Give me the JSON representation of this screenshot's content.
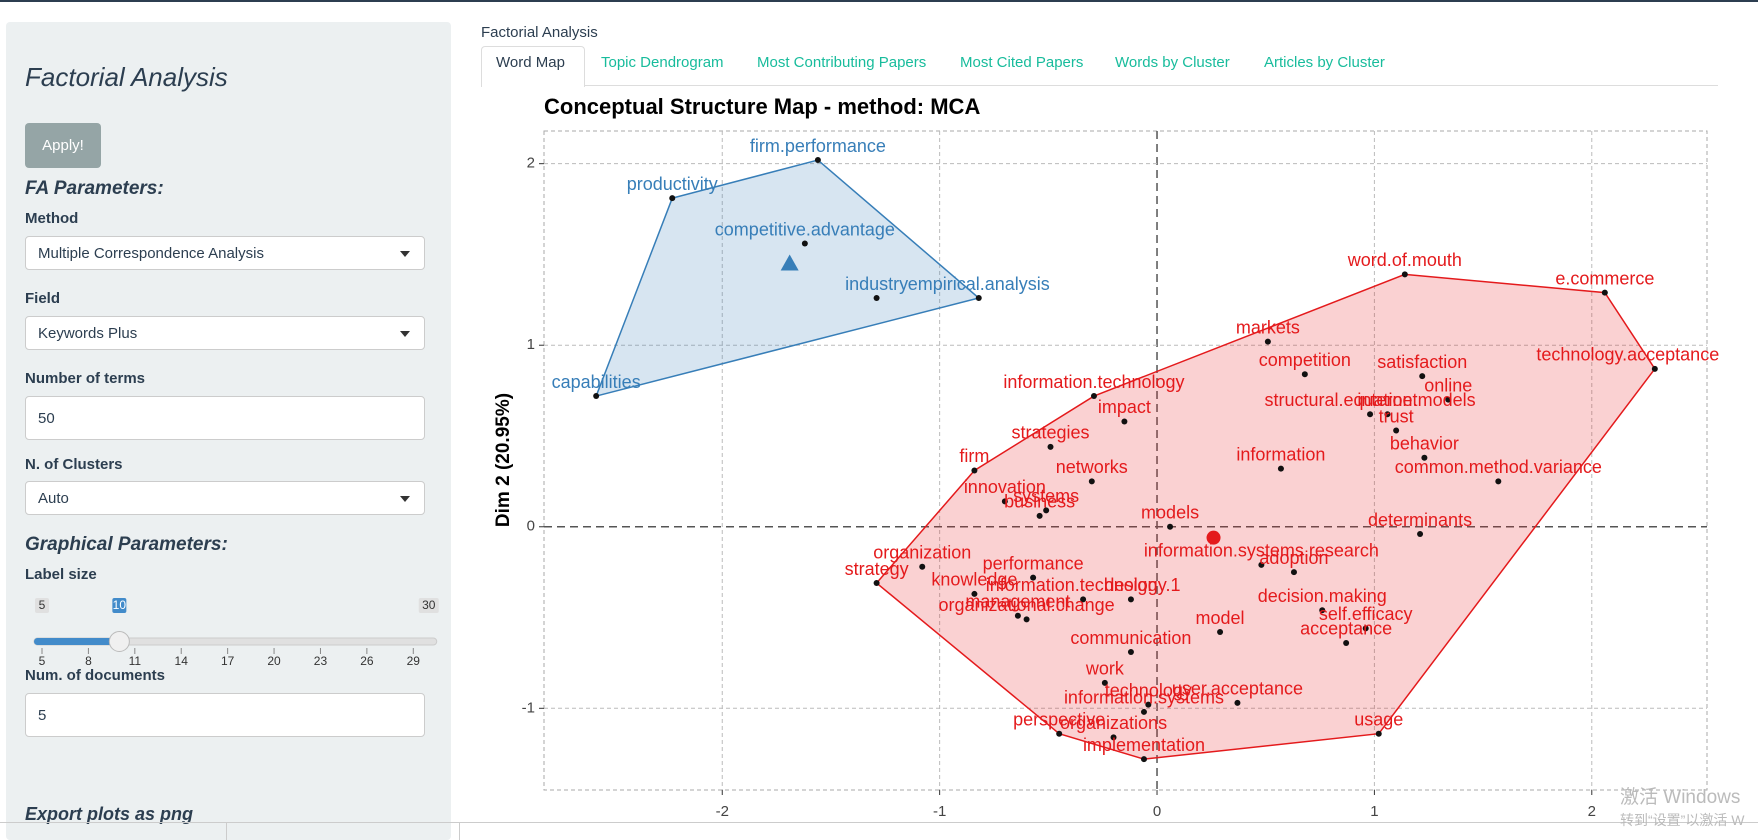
{
  "sidebar": {
    "title": "Factorial Analysis",
    "apply": "Apply!",
    "fa_heading": "FA Parameters:",
    "method_label": "Method",
    "method_value": "Multiple Correspondence Analysis",
    "field_label": "Field",
    "field_value": "Keywords Plus",
    "terms_label": "Number of terms",
    "terms_value": "50",
    "clusters_label": "N. of Clusters",
    "clusters_value": "Auto",
    "graph_heading": "Graphical Parameters:",
    "label_size_label": "Label size",
    "slider": {
      "min": 5,
      "max": 30,
      "value": 10,
      "ticks": [
        5,
        8,
        11,
        14,
        17,
        20,
        23,
        26,
        29
      ]
    },
    "docs_label": "Num. of documents",
    "docs_value": "5",
    "export": "Export plots as png"
  },
  "header": "Factorial Analysis",
  "tabs": [
    "Word Map",
    "Topic Dendrogram",
    "Most Contributing Papers",
    "Most Cited Papers",
    "Words by Cluster",
    "Articles by Cluster"
  ],
  "watermark": [
    "激活 Windows",
    "转到“设置”以激活 W"
  ],
  "chart_data": {
    "type": "scatter",
    "title": "Conceptual Structure Map - method: MCA",
    "ylabel": "Dim 2 (20.95%)",
    "xlim": [
      -2.82,
      2.53
    ],
    "ylim": [
      -1.45,
      2.18
    ],
    "xticks": [
      -2,
      -1,
      0,
      1,
      2
    ],
    "yticks": [
      -1,
      0,
      1,
      2
    ],
    "grid": true,
    "series": [
      {
        "color": "#377eb8",
        "labels": [
          "firm.performance",
          "productivity",
          "competitive.advantage",
          "industry",
          "empirical.analysis",
          "capabilities"
        ],
        "x": [
          -1.56,
          -2.23,
          -1.62,
          -1.29,
          -0.82,
          -2.58
        ],
        "values": [
          2.02,
          1.81,
          1.56,
          1.26,
          1.26,
          0.72
        ],
        "centroid": {
          "x": -1.69,
          "y": 1.45
        }
      },
      {
        "color": "#e41a1c",
        "labels": [
          "word.of.mouth",
          "e.commerce",
          "technology.acceptance.model",
          "markets",
          "competition",
          "satisfaction",
          "information.technology",
          "internet",
          "structural.equation.models",
          "online",
          "impact",
          "trust",
          "strategies",
          "behavior",
          "information",
          "firm",
          "networks",
          "common.method.variance",
          "innovation",
          "systems",
          "business",
          "models",
          "determinants",
          "organization",
          "information.systems.research",
          "adoption",
          "performance",
          "strategy",
          "knowledge",
          "information.technology.1",
          "design",
          "decision.making",
          "management",
          "organizational.change",
          "self.efficacy",
          "model",
          "acceptance",
          "communication",
          "work",
          "user.acceptance",
          "technology",
          "information.systems",
          "usage",
          "perspective",
          "organizations",
          "implementation"
        ],
        "x": [
          1.14,
          2.06,
          2.29,
          0.51,
          0.68,
          1.22,
          -0.29,
          1.06,
          0.98,
          1.34,
          -0.15,
          1.1,
          -0.49,
          1.23,
          0.57,
          -0.84,
          -0.3,
          1.57,
          -0.7,
          -0.51,
          -0.54,
          0.06,
          1.21,
          -1.08,
          0.48,
          0.63,
          -0.57,
          -1.29,
          -0.84,
          -0.34,
          -0.12,
          0.76,
          -0.64,
          -0.6,
          0.96,
          0.29,
          0.87,
          -0.12,
          -0.24,
          0.37,
          -0.04,
          -0.06,
          1.02,
          -0.45,
          -0.2,
          -0.06
        ],
        "values": [
          1.39,
          1.29,
          0.87,
          1.02,
          0.84,
          0.83,
          0.72,
          0.62,
          0.62,
          0.7,
          0.58,
          0.53,
          0.44,
          0.38,
          0.32,
          0.31,
          0.25,
          0.25,
          0.14,
          0.09,
          0.06,
          0.0,
          -0.04,
          -0.22,
          -0.21,
          -0.25,
          -0.28,
          -0.31,
          -0.37,
          -0.4,
          -0.4,
          -0.46,
          -0.49,
          -0.51,
          -0.56,
          -0.58,
          -0.64,
          -0.69,
          -0.86,
          -0.97,
          -0.98,
          -1.02,
          -1.14,
          -1.14,
          -1.16,
          -1.28
        ],
        "centroid": {
          "x": 0.26,
          "y": -0.06
        }
      }
    ]
  }
}
